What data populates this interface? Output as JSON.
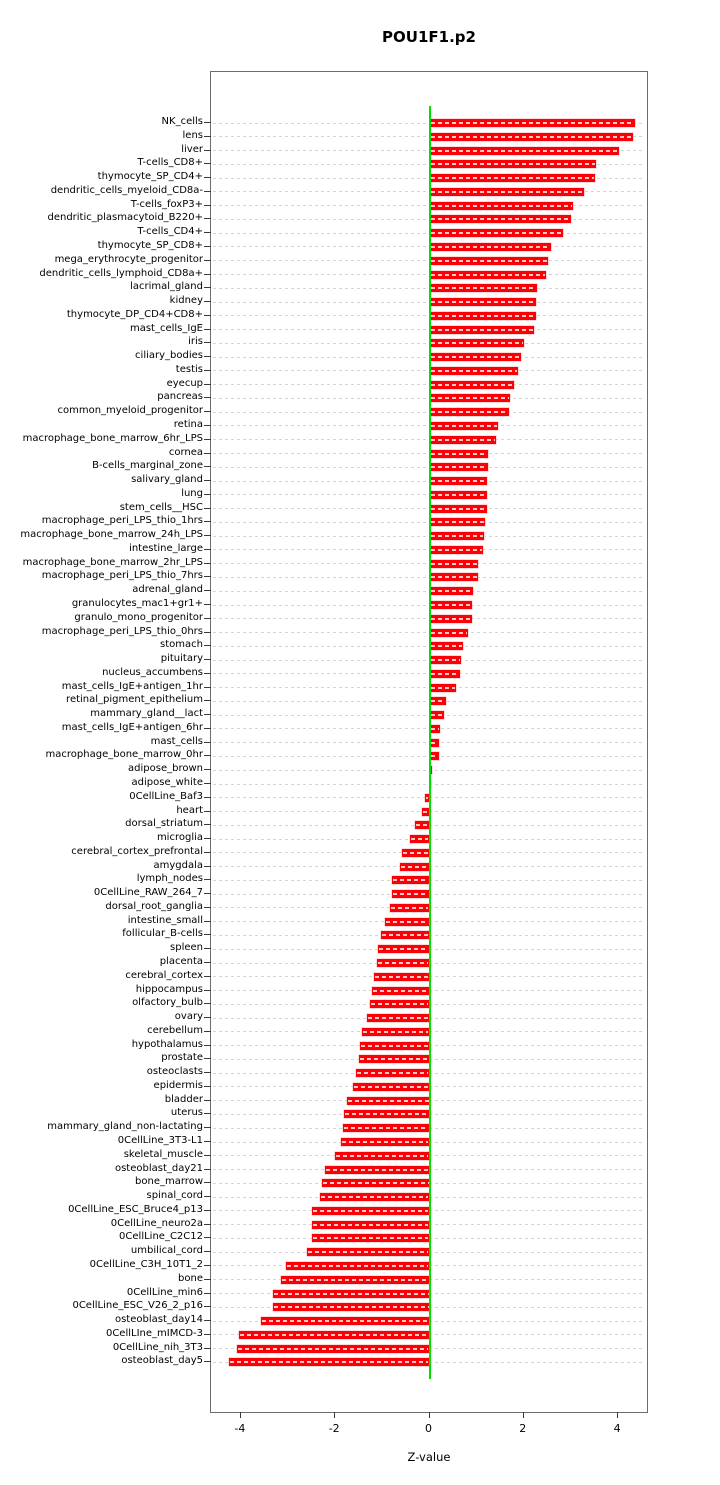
{
  "chart_data": {
    "type": "bar",
    "orientation": "horizontal",
    "title": "POU1F1.p2",
    "xlabel": "Z-value",
    "xlim": [
      -4.65,
      4.65
    ],
    "x_ticks": [
      -4,
      -2,
      0,
      2,
      4
    ],
    "grid": "dashed-horizontal-per-row",
    "legend": "none",
    "bar_color": "#FB0007",
    "zero_line_color": "#00DF00",
    "categories": [
      "NK_cells",
      "lens",
      "liver",
      "T-cells_CD8+",
      "thymocyte_SP_CD4+",
      "dendritic_cells_myeloid_CD8a-",
      "T-cells_foxP3+",
      "dendritic_plasmacytoid_B220+",
      "T-cells_CD4+",
      "thymocyte_SP_CD8+",
      "mega_erythrocyte_progenitor",
      "dendritic_cells_lymphoid_CD8a+",
      "lacrimal_gland",
      "kidney",
      "thymocyte_DP_CD4+CD8+",
      "mast_cells_IgE",
      "iris",
      "ciliary_bodies",
      "testis",
      "eyecup",
      "pancreas",
      "common_myeloid_progenitor",
      "retina",
      "macrophage_bone_marrow_6hr_LPS",
      "cornea",
      "B-cells_marginal_zone",
      "salivary_gland",
      "lung",
      "stem_cells__HSC",
      "macrophage_peri_LPS_thio_1hrs",
      "macrophage_bone_marrow_24h_LPS",
      "intestine_large",
      "macrophage_bone_marrow_2hr_LPS",
      "macrophage_peri_LPS_thio_7hrs",
      "adrenal_gland",
      "granulocytes_mac1+gr1+",
      "granulo_mono_progenitor",
      "macrophage_peri_LPS_thio_0hrs",
      "stomach",
      "pituitary",
      "nucleus_accumbens",
      "mast_cells_IgE+antigen_1hr",
      "retinal_pigment_epithelium",
      "mammary_gland__lact",
      "mast_cells_IgE+antigen_6hr",
      "mast_cells",
      "macrophage_bone_marrow_0hr",
      "adipose_brown",
      "adipose_white",
      "0CellLine_Baf3",
      "heart",
      "dorsal_striatum",
      "microglia",
      "cerebral_cortex_prefrontal",
      "amygdala",
      "lymph_nodes",
      "0CellLine_RAW_264_7",
      "dorsal_root_ganglia",
      "intestine_small",
      "follicular_B-cells",
      "spleen",
      "placenta",
      "cerebral_cortex",
      "hippocampus",
      "olfactory_bulb",
      "ovary",
      "cerebellum",
      "hypothalamus",
      "prostate",
      "osteoclasts",
      "epidermis",
      "bladder",
      "uterus",
      "mammary_gland_non-lactating",
      "0CellLine_3T3-L1",
      "skeletal_muscle",
      "osteoblast_day21",
      "bone_marrow",
      "spinal_cord",
      "0CellLine_ESC_Bruce4_p13",
      "0CellLine_neuro2a",
      "0CellLine_C2C12",
      "umbilical_cord",
      "0CellLine_C3H_10T1_2",
      "bone",
      "0CellLine_min6",
      "0CellLine_ESC_V26_2_p16",
      "osteoblast_day14",
      "0CellLIne_mIMCD-3",
      "0CellLine_nih_3T3",
      "osteoblast_day5"
    ],
    "values": [
      4.35,
      4.31,
      4.02,
      3.53,
      3.5,
      3.28,
      3.05,
      3.0,
      2.84,
      2.57,
      2.52,
      2.46,
      2.28,
      2.26,
      2.25,
      2.22,
      2.0,
      1.93,
      1.87,
      1.8,
      1.7,
      1.68,
      1.46,
      1.41,
      1.24,
      1.23,
      1.22,
      1.22,
      1.21,
      1.18,
      1.16,
      1.13,
      1.03,
      1.02,
      0.93,
      0.9,
      0.9,
      0.82,
      0.72,
      0.66,
      0.64,
      0.56,
      0.35,
      0.3,
      0.22,
      0.21,
      0.19,
      0.06,
      0.02,
      -0.09,
      -0.15,
      -0.3,
      -0.42,
      -0.59,
      -0.62,
      -0.79,
      -0.8,
      -0.84,
      -0.94,
      -1.04,
      -1.1,
      -1.12,
      -1.18,
      -1.22,
      -1.26,
      -1.33,
      -1.43,
      -1.47,
      -1.49,
      -1.56,
      -1.63,
      -1.76,
      -1.82,
      -1.84,
      -1.88,
      -2.0,
      -2.21,
      -2.29,
      -2.32,
      -2.49,
      -2.49,
      -2.5,
      -2.6,
      -3.04,
      -3.16,
      -3.33,
      -3.33,
      -3.58,
      -4.05,
      -4.09,
      -4.26
    ]
  }
}
